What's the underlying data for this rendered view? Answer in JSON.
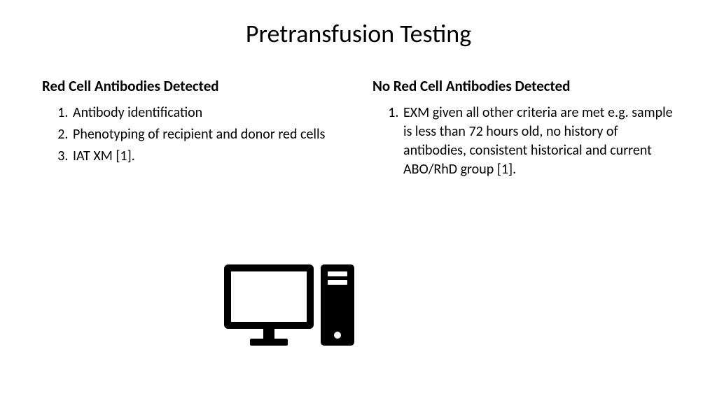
{
  "title": "Pretransfusion Testing",
  "left": {
    "heading": "Red Cell Antibodies Detected",
    "items": [
      "Antibody identification",
      "Phenotyping of recipient and donor red cells",
      "IAT XM [1]."
    ]
  },
  "right": {
    "heading": "No Red Cell Antibodies Detected",
    "items": [
      "EXM given all other criteria are met e.g. sample is less than 72 hours old, no history of antibodies, consistent historical and current ABO/RhD group [1]."
    ]
  },
  "colors": {
    "background": "#ffffff",
    "text": "#000000",
    "icon": "#000000"
  },
  "typography": {
    "title_fontsize": 36,
    "heading_fontsize": 21,
    "body_fontsize": 20,
    "font_family": "Calibri"
  }
}
